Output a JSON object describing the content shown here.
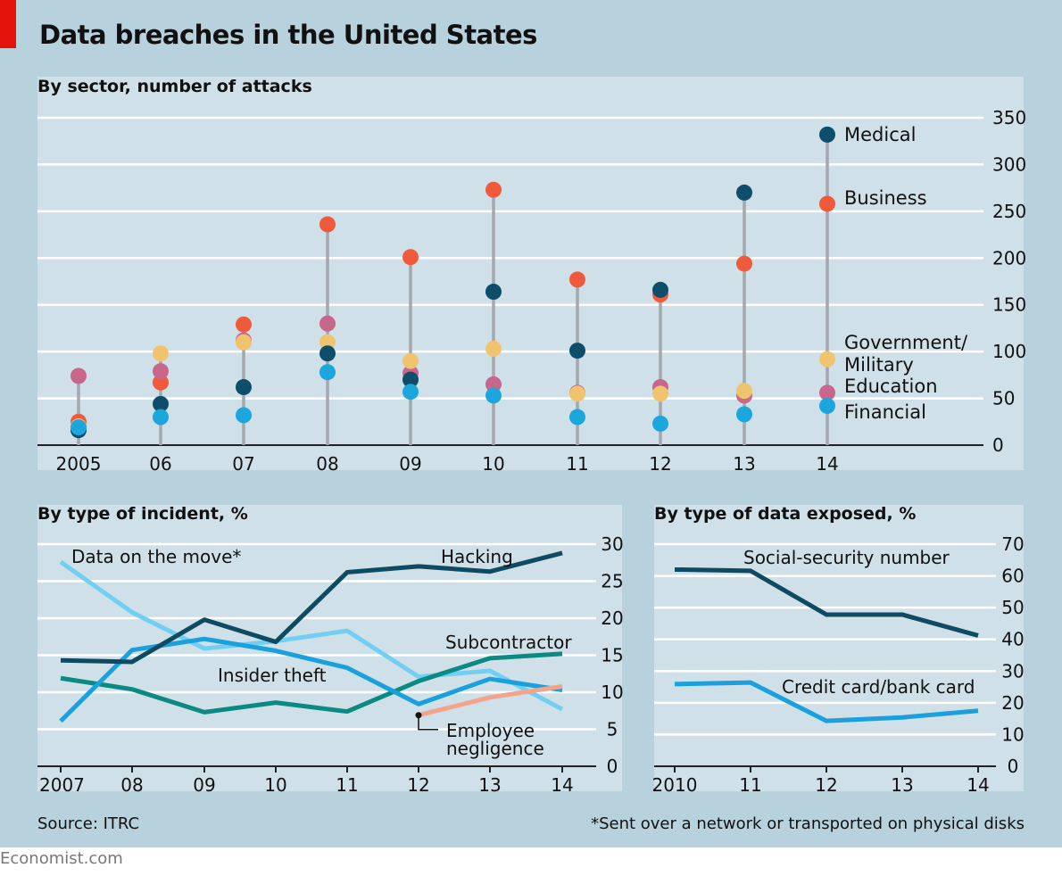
{
  "title": "Data breaches in the United States",
  "source": "Source: ITRC",
  "footnote": "*Sent over a network or transported on physical disks",
  "credit": "Economist.com",
  "colors": {
    "frame": "#b7d1dd",
    "panel": "#cfe0e8",
    "medical": "#0f4e6a",
    "business": "#f05a3c",
    "government": "#f0c46e",
    "education": "#c8668c",
    "financial": "#1ca6de",
    "hacking": "#0e4b63",
    "data_on_the_move": "#72cff2",
    "insider_theft": "#1aa0dc",
    "subcontractor": "#0a8a82",
    "employee_negligence": "#f2a58c",
    "ssn": "#0e4b63",
    "credit_card": "#1aa0dc",
    "stem": "#a2a8ad"
  },
  "chart_data": [
    {
      "type": "scatter",
      "title": "By sector, number of attacks",
      "x_tick_labels": [
        "2005",
        "06",
        "07",
        "08",
        "09",
        "10",
        "11",
        "12",
        "13",
        "14"
      ],
      "y_ticks": [
        0,
        50,
        100,
        150,
        200,
        250,
        300,
        350
      ],
      "ylim": [
        0,
        350
      ],
      "grid": true,
      "series": [
        {
          "name": "Medical",
          "color_key": "medical",
          "values": [
            16,
            44,
            62,
            98,
            70,
            164,
            101,
            166,
            270,
            332
          ]
        },
        {
          "name": "Business",
          "color_key": "business",
          "values": [
            25,
            67,
            129,
            236,
            201,
            273,
            177,
            161,
            194,
            258
          ]
        },
        {
          "name": "Government/ Military",
          "label_lines": [
            "Government/",
            "Military"
          ],
          "color_key": "government",
          "values": [
            20,
            98,
            110,
            110,
            90,
            103,
            55,
            55,
            58,
            92
          ]
        },
        {
          "name": "Education",
          "color_key": "education",
          "values": [
            74,
            79,
            112,
            130,
            77,
            65,
            56,
            62,
            53,
            56
          ]
        },
        {
          "name": "Financial",
          "color_key": "financial",
          "values": [
            19,
            30,
            32,
            78,
            57,
            53,
            30,
            23,
            33,
            42
          ]
        }
      ]
    },
    {
      "type": "line",
      "title": "By type of incident, %",
      "x_tick_labels": [
        "2007",
        "08",
        "09",
        "10",
        "11",
        "12",
        "13",
        "14"
      ],
      "y_ticks": [
        0,
        5,
        10,
        15,
        20,
        25,
        30
      ],
      "ylim": [
        0,
        30
      ],
      "grid": true,
      "series": [
        {
          "name": "Hacking",
          "color_key": "hacking",
          "x_start": 0,
          "values": [
            14.3,
            14.1,
            19.8,
            16.8,
            26.2,
            27.0,
            26.3,
            28.8
          ]
        },
        {
          "name": "Data on the move*",
          "color_key": "data_on_the_move",
          "x_start": 0,
          "values": [
            27.6,
            20.8,
            15.9,
            16.9,
            18.3,
            12.1,
            12.9,
            7.7
          ]
        },
        {
          "name": "Insider theft",
          "color_key": "insider_theft",
          "x_start": 0,
          "values": [
            6.1,
            15.7,
            17.2,
            15.6,
            13.3,
            8.4,
            11.8,
            10.3
          ]
        },
        {
          "name": "Subcontractor",
          "color_key": "subcontractor",
          "x_start": 0,
          "values": [
            11.9,
            10.4,
            7.3,
            8.6,
            7.4,
            11.5,
            14.6,
            15.2
          ]
        },
        {
          "name": "Employee negligence",
          "label_lines": [
            "Employee",
            "negligence"
          ],
          "color_key": "employee_negligence",
          "x_start": 5,
          "values": [
            6.9,
            9.3,
            10.8
          ]
        }
      ]
    },
    {
      "type": "line",
      "title": "By type of data exposed, %",
      "x_tick_labels": [
        "2010",
        "11",
        "12",
        "13",
        "14"
      ],
      "y_ticks": [
        0,
        10,
        20,
        30,
        40,
        50,
        60,
        70
      ],
      "ylim": [
        0,
        70
      ],
      "grid": true,
      "series": [
        {
          "name": "Social-security number",
          "color_key": "ssn",
          "values": [
            62.0,
            61.6,
            47.8,
            47.8,
            41.2
          ]
        },
        {
          "name": "Credit card/bank card",
          "color_key": "credit_card",
          "values": [
            25.9,
            26.4,
            14.3,
            15.4,
            17.5
          ]
        }
      ]
    }
  ]
}
